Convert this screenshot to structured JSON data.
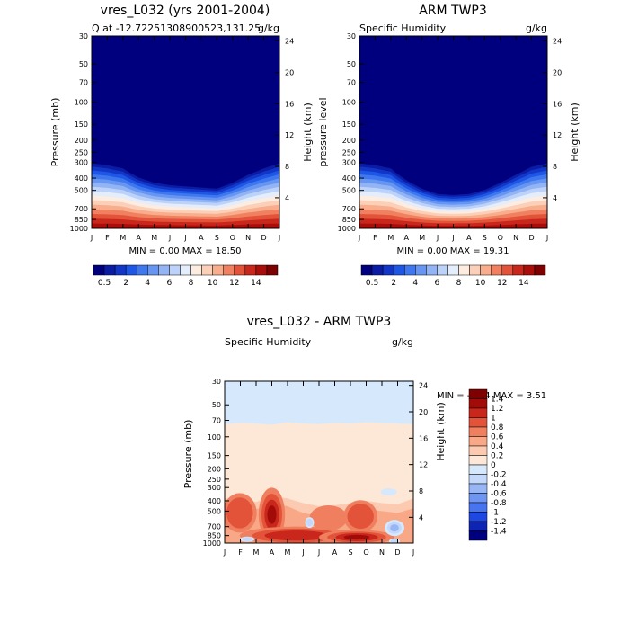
{
  "months": [
    "J",
    "F",
    "M",
    "A",
    "M",
    "J",
    "J",
    "A",
    "S",
    "O",
    "N",
    "D",
    "J"
  ],
  "pressure_ticks": [
    30,
    50,
    70,
    100,
    150,
    200,
    250,
    300,
    400,
    500,
    700,
    850,
    1000
  ],
  "height_ticks": [
    24,
    20,
    16,
    12,
    8,
    4
  ],
  "colors": {
    "q_levels": [
      "#00007f",
      "#0a1ca4",
      "#1237c8",
      "#1e56e6",
      "#3f78ee",
      "#6795f2",
      "#92b4f5",
      "#bcd2f8",
      "#e4edfb",
      "#fdece0",
      "#fcd0b8",
      "#f8ad8c",
      "#f0805f",
      "#e2533a",
      "#c9271b",
      "#a90e0b",
      "#7f0000"
    ],
    "diff_levels": [
      "#00007f",
      "#0d25b2",
      "#1f47e2",
      "#4874ef",
      "#6e95f2",
      "#98b6f5",
      "#c3d8fa",
      "#d6e8fb",
      "#fde7d6",
      "#fccab0",
      "#f8a887",
      "#ef7f5e",
      "#e2533a",
      "#c9271b",
      "#a10c09",
      "#7f0000"
    ]
  },
  "chart_data": [
    {
      "type": "heatmap",
      "title": "vres_L032 (yrs 2001-2004)",
      "left_subtitle": "Q at -12.72251308900523,131.25",
      "right_subtitle": "g/kg",
      "ylabel": "Pressure (mb)",
      "ylabel_right": "Height (km)",
      "minmax": "MIN =   0.00 MAX =  18.50",
      "colorbar_labels": [
        "0.5",
        "2",
        "4",
        "6",
        "8",
        "10",
        "12",
        "14"
      ],
      "moisture_top_pressure_by_month": [
        290,
        300,
        320,
        380,
        420,
        440,
        450,
        460,
        470,
        420,
        360,
        320,
        290
      ],
      "max_value": 18.5
    },
    {
      "type": "heatmap",
      "title": "ARM TWP3",
      "left_subtitle": "Specific Humidity",
      "right_subtitle": "g/kg",
      "ylabel": "pressure level",
      "ylabel_right": "Height (km)",
      "minmax": "MIN =   0.00 MAX =  19.31",
      "colorbar_labels": [
        "0.5",
        "2",
        "4",
        "6",
        "8",
        "10",
        "12",
        "14"
      ],
      "moisture_top_pressure_by_month": [
        290,
        300,
        320,
        400,
        470,
        520,
        530,
        520,
        480,
        420,
        360,
        310,
        290
      ],
      "max_value": 19.31
    },
    {
      "type": "heatmap",
      "title": "vres_L032 - ARM TWP3",
      "left_subtitle": "Specific Humidity",
      "right_subtitle": "g/kg",
      "ylabel": "Pressure (mb)",
      "ylabel_right": "Height (km)",
      "minmax": "MIN =  -1.44 MAX =   3.51",
      "colorbar_labels": [
        "1.4",
        "1.2",
        "1",
        "0.8",
        "0.6",
        "0.4",
        "0.2",
        "0",
        "-0.2",
        "-0.4",
        "-0.6",
        "-0.8",
        "-1",
        "-1.2",
        "-1.4"
      ],
      "min_value": -1.44,
      "max_value": 3.51
    }
  ]
}
